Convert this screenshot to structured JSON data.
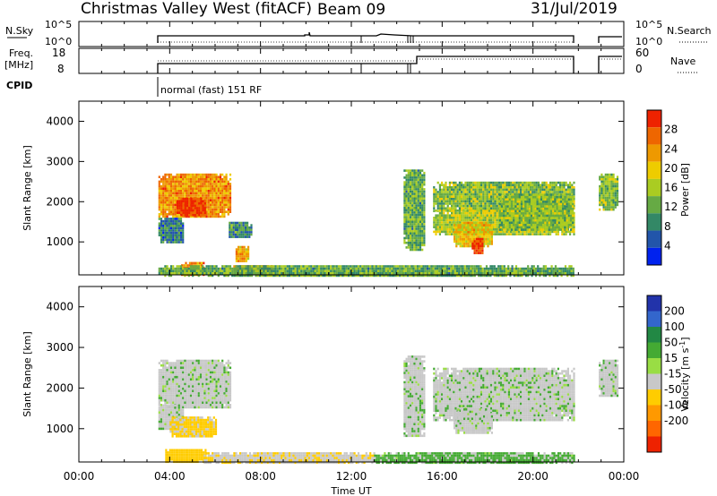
{
  "header": {
    "title": "Christmas Valley West (fitACF)",
    "beam": "Beam 09",
    "date": "31/Jul/2019"
  },
  "panels": {
    "nsky": {
      "left_label": "N.Sky",
      "left_ticks": [
        "10^5",
        "10^0"
      ],
      "right_label": "N.Search",
      "right_ticks": [
        "10^5",
        "10^0"
      ]
    },
    "freq": {
      "left_label_1": "Freq.",
      "left_label_2": "[MHz]",
      "left_ticks": [
        "18",
        "8"
      ],
      "right_label": "Nave",
      "right_ticks": [
        "60",
        "0"
      ]
    },
    "cpid": {
      "label": "CPID",
      "mode": "normal (fast) 151 RF"
    }
  },
  "chart_data": [
    {
      "type": "heatmap",
      "name": "power",
      "ylabel": "Slant Range [km]",
      "y_ticks": [
        1000,
        2000,
        3000,
        4000
      ],
      "ylim": [
        180,
        4500
      ],
      "xlim": [
        0,
        24
      ],
      "colorbar": {
        "label": "Power [dB]",
        "ticks": [
          4,
          8,
          12,
          16,
          20,
          24,
          28
        ],
        "range": [
          0,
          32
        ],
        "colors": [
          "#0022ee",
          "#2255aa",
          "#338866",
          "#66aa44",
          "#aacc22",
          "#eecc00",
          "#ee9900",
          "#ee6600",
          "#ee2200"
        ]
      },
      "regions": [
        {
          "t": [
            3.5,
            6.7
          ],
          "r": [
            1600,
            2700
          ],
          "level": 24
        },
        {
          "t": [
            4.3,
            5.6
          ],
          "r": [
            1650,
            2100
          ],
          "level": 30
        },
        {
          "t": [
            3.5,
            4.6
          ],
          "r": [
            1000,
            1600
          ],
          "level": 8
        },
        {
          "t": [
            6.6,
            7.6
          ],
          "r": [
            1100,
            1500
          ],
          "level": 10
        },
        {
          "t": [
            6.9,
            7.5
          ],
          "r": [
            500,
            900
          ],
          "level": 22
        },
        {
          "t": [
            4.5,
            5.5
          ],
          "r": [
            200,
            500
          ],
          "level": 24
        },
        {
          "t": [
            6.8,
            8.5
          ],
          "r": [
            200,
            420
          ],
          "level": 28
        },
        {
          "t": [
            3.5,
            21.8
          ],
          "r": [
            180,
            420
          ],
          "level": 12
        },
        {
          "t": [
            14.3,
            15.2
          ],
          "r": [
            800,
            2800
          ],
          "level": 12
        },
        {
          "t": [
            15.6,
            21.8
          ],
          "r": [
            1800,
            2500
          ],
          "level": 14
        },
        {
          "t": [
            15.6,
            21.8
          ],
          "r": [
            1200,
            1800
          ],
          "level": 16
        },
        {
          "t": [
            16.5,
            18.2
          ],
          "r": [
            900,
            1500
          ],
          "level": 20
        },
        {
          "t": [
            17.3,
            17.8
          ],
          "r": [
            700,
            1100
          ],
          "level": 30
        },
        {
          "t": [
            18.5,
            21.8
          ],
          "r": [
            1300,
            2200
          ],
          "level": 14
        },
        {
          "t": [
            22.9,
            23.7
          ],
          "r": [
            1800,
            2700
          ],
          "level": 14
        }
      ]
    },
    {
      "type": "heatmap",
      "name": "velocity",
      "ylabel": "Slant Range [km]",
      "y_ticks": [
        1000,
        2000,
        3000,
        4000
      ],
      "ylim": [
        180,
        4500
      ],
      "xlim": [
        0,
        24
      ],
      "xlabel": "Time UT",
      "x_ticks": [
        "00:00",
        "04:00",
        "08:00",
        "12:00",
        "16:00",
        "20:00",
        "00:00"
      ],
      "colorbar": {
        "label": "Velocity [m s^-1]",
        "ticks": [
          "200",
          "100",
          "50",
          "15",
          "-15",
          "-50",
          "-100",
          "-200"
        ],
        "colors": [
          "#2233aa",
          "#3366cc",
          "#228844",
          "#44aa33",
          "#99dd44",
          "#c8c8c8",
          "#ffcc00",
          "#ff9900",
          "#ff6600",
          "#ee2200"
        ]
      },
      "regions": [
        {
          "t": [
            3.5,
            6.7
          ],
          "r": [
            1500,
            2700
          ],
          "v": 0
        },
        {
          "t": [
            3.5,
            4.6
          ],
          "r": [
            1000,
            1600
          ],
          "v": 0
        },
        {
          "t": [
            4.0,
            6.0
          ],
          "r": [
            800,
            1300
          ],
          "v": -60
        },
        {
          "t": [
            3.8,
            5.6
          ],
          "r": [
            200,
            500
          ],
          "v": -70
        },
        {
          "t": [
            5.5,
            13.0
          ],
          "r": [
            180,
            420
          ],
          "v": -40
        },
        {
          "t": [
            13.0,
            21.8
          ],
          "r": [
            180,
            420
          ],
          "v": 25
        },
        {
          "t": [
            14.3,
            15.2
          ],
          "r": [
            800,
            2800
          ],
          "v": 0
        },
        {
          "t": [
            15.6,
            21.8
          ],
          "r": [
            1200,
            2500
          ],
          "v": 0
        },
        {
          "t": [
            16.5,
            18.2
          ],
          "r": [
            900,
            1500
          ],
          "v": 0
        },
        {
          "t": [
            22.9,
            23.7
          ],
          "r": [
            1800,
            2700
          ],
          "v": 0
        }
      ]
    }
  ]
}
